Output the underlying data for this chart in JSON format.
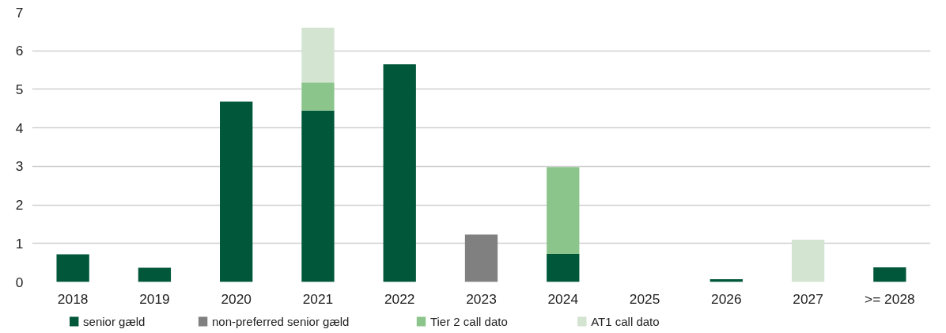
{
  "chart_data": {
    "type": "bar",
    "stacked": true,
    "categories": [
      "2018",
      "2019",
      "2020",
      "2021",
      "2022",
      "2023",
      "2024",
      "2025",
      "2026",
      "2027",
      ">= 2028"
    ],
    "series": [
      {
        "name": "senior gæld",
        "color": "#00573a",
        "values": [
          0.72,
          0.37,
          4.68,
          4.45,
          5.65,
          null,
          0.73,
          null,
          0.07,
          null,
          0.38
        ]
      },
      {
        "name": "non-preferred senior gæld",
        "color": "#808080",
        "values": [
          null,
          null,
          null,
          null,
          null,
          1.23,
          null,
          null,
          null,
          null,
          null
        ]
      },
      {
        "name": "Tier 2 call dato",
        "color": "#8bc58b",
        "values": [
          null,
          null,
          null,
          0.73,
          null,
          null,
          2.25,
          null,
          null,
          null,
          null
        ]
      },
      {
        "name": "AT1 call dato",
        "color": "#d3e5d0",
        "values": [
          null,
          null,
          null,
          1.42,
          null,
          null,
          null,
          null,
          null,
          1.1,
          null
        ]
      }
    ],
    "ylim": [
      0,
      7
    ],
    "yticks": [
      0,
      1,
      2,
      3,
      4,
      5,
      6,
      7
    ],
    "grid": "y",
    "legend": "bottom"
  }
}
